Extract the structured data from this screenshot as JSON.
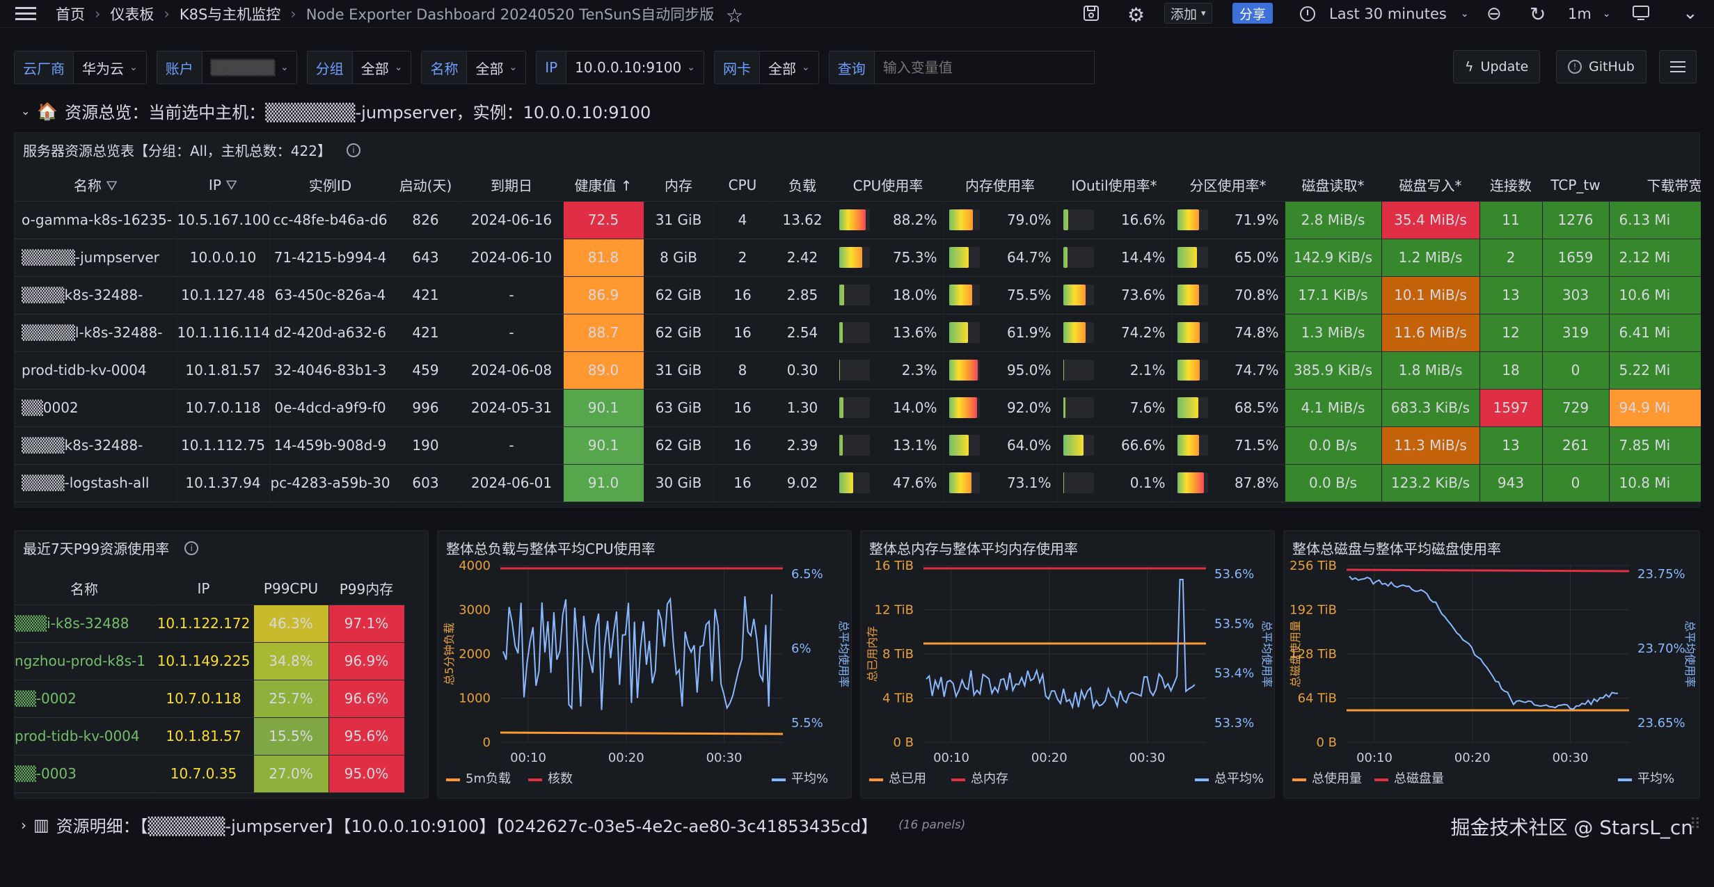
{
  "nav": {
    "breadcrumb": [
      "首页",
      "仪表板",
      "K8S与主机监控",
      "Node Exporter Dashboard 20240520 TenSunS自动同步版"
    ],
    "add_label": "添加",
    "share_label": "分享",
    "time_range": "Last 30 minutes",
    "refresh_interval": "1m"
  },
  "vars": [
    {
      "label": "云厂商",
      "value": "华为云"
    },
    {
      "label": "账户",
      "value": "▒▒▒▒▒▒"
    },
    {
      "label": "分组",
      "value": "全部"
    },
    {
      "label": "名称",
      "value": "全部"
    },
    {
      "label": "IP",
      "value": "10.0.0.10:9100"
    },
    {
      "label": "网卡",
      "value": "全部"
    }
  ],
  "query": {
    "label": "查询",
    "placeholder": "输入变量值"
  },
  "buttons": {
    "update": "Update",
    "github": "GitHub"
  },
  "row1": {
    "title": "资源总览：当前选中主机：▒▒▒▒▒▒▒-jumpserver，实例：10.0.0.10:9100"
  },
  "overview": {
    "title": "服务器资源总览表【分组：All，主机总数：422】",
    "headers": [
      "名称",
      "IP",
      "实例ID",
      "启动(天)",
      "到期日",
      "健康值",
      "内存",
      "CPU",
      "负载",
      "CPU使用率",
      "内存使用率",
      "IOutil使用率*",
      "分区使用率*",
      "磁盘读取*",
      "磁盘写入*",
      "连接数",
      "TCP_tw",
      "下载带宽"
    ],
    "rows": [
      {
        "name": "o-gamma-k8s-16235-",
        "ip": "10.5.167.100",
        "id": "cc-48fe-b46a-d6",
        "up": "826",
        "exp": "2024-06-16",
        "health": "72.5",
        "mem": "31 GiB",
        "cpu": "4",
        "load": "13.62",
        "cpu_p": "88.2%",
        "mem_p": "79.0%",
        "io_p": "16.6%",
        "part_p": "71.9%",
        "dr": "2.8 MiB/s",
        "dw": "35.4 MiB/s",
        "conn": "11",
        "tw": "1276",
        "bw": "6.13 Mi"
      },
      {
        "name": "▒▒▒▒▒-jumpserver",
        "ip": "10.0.0.10",
        "id": "71-4215-b994-4",
        "up": "643",
        "exp": "2024-06-10",
        "health": "81.8",
        "mem": "8 GiB",
        "cpu": "2",
        "load": "2.42",
        "cpu_p": "75.3%",
        "mem_p": "64.7%",
        "io_p": "14.4%",
        "part_p": "65.0%",
        "dr": "142.9 KiB/s",
        "dw": "1.2 MiB/s",
        "conn": "2",
        "tw": "1659",
        "bw": "2.12 Mi"
      },
      {
        "name": "▒▒▒▒k8s-32488-",
        "ip": "10.1.127.48",
        "id": "63-450c-826a-4",
        "up": "421",
        "exp": "-",
        "health": "86.9",
        "mem": "62 GiB",
        "cpu": "16",
        "load": "2.85",
        "cpu_p": "18.0%",
        "mem_p": "75.5%",
        "io_p": "73.6%",
        "part_p": "70.8%",
        "dr": "17.1 KiB/s",
        "dw": "10.1 MiB/s",
        "conn": "13",
        "tw": "303",
        "bw": "10.6 Mi"
      },
      {
        "name": "▒▒▒▒▒l-k8s-32488-",
        "ip": "10.1.116.114",
        "id": "d2-420d-a632-6",
        "up": "421",
        "exp": "-",
        "health": "88.7",
        "mem": "62 GiB",
        "cpu": "16",
        "load": "2.54",
        "cpu_p": "13.6%",
        "mem_p": "61.9%",
        "io_p": "74.2%",
        "part_p": "74.8%",
        "dr": "1.3 MiB/s",
        "dw": "11.6 MiB/s",
        "conn": "12",
        "tw": "319",
        "bw": "6.41 Mi"
      },
      {
        "name": "prod-tidb-kv-0004",
        "ip": "10.1.81.57",
        "id": "32-4046-83b1-3",
        "up": "459",
        "exp": "2024-06-08",
        "health": "89.0",
        "mem": "31 GiB",
        "cpu": "8",
        "load": "0.30",
        "cpu_p": "2.3%",
        "mem_p": "95.0%",
        "io_p": "2.1%",
        "part_p": "74.7%",
        "dr": "385.9 KiB/s",
        "dw": "1.8 MiB/s",
        "conn": "18",
        "tw": "0",
        "bw": "5.22 Mi"
      },
      {
        "name": "▒▒0002",
        "ip": "10.7.0.118",
        "id": "0e-4dcd-a9f9-f0",
        "up": "996",
        "exp": "2024-05-31",
        "health": "90.1",
        "mem": "63 GiB",
        "cpu": "16",
        "load": "1.30",
        "cpu_p": "14.0%",
        "mem_p": "92.0%",
        "io_p": "7.6%",
        "part_p": "68.5%",
        "dr": "4.1 MiB/s",
        "dw": "683.3 KiB/s",
        "conn": "1597",
        "tw": "729",
        "bw": "94.9 Mi"
      },
      {
        "name": "▒▒▒▒k8s-32488-",
        "ip": "10.1.112.75",
        "id": "14-459b-908d-9",
        "up": "190",
        "exp": "-",
        "health": "90.1",
        "mem": "62 GiB",
        "cpu": "16",
        "load": "2.39",
        "cpu_p": "13.1%",
        "mem_p": "64.0%",
        "io_p": "66.6%",
        "part_p": "71.5%",
        "dr": "0.0 B/s",
        "dw": "11.3 MiB/s",
        "conn": "13",
        "tw": "261",
        "bw": "7.85 Mi"
      },
      {
        "name": "▒▒▒▒-logstash-all",
        "ip": "10.1.37.94",
        "id": "pc-4283-a59b-30",
        "up": "603",
        "exp": "2024-06-01",
        "health": "91.0",
        "mem": "30 GiB",
        "cpu": "16",
        "load": "9.02",
        "cpu_p": "47.6%",
        "mem_p": "73.1%",
        "io_p": "0.1%",
        "part_p": "87.8%",
        "dr": "0.0 B/s",
        "dw": "123.2 KiB/s",
        "conn": "943",
        "tw": "0",
        "bw": "10.8 Mi"
      }
    ]
  },
  "p99": {
    "title": "最近7天P99资源使用率",
    "headers": [
      "名称",
      "IP",
      "P99CPU",
      "P99内存"
    ],
    "rows": [
      {
        "name": "▒▒▒i-k8s-32488",
        "ip": "10.1.122.172",
        "cpu": "46.3%",
        "mem": "97.1%"
      },
      {
        "name": "ngzhou-prod-k8s-1",
        "ip": "10.1.149.225",
        "cpu": "34.8%",
        "mem": "96.9%"
      },
      {
        "name": "▒▒-0002",
        "ip": "10.7.0.118",
        "cpu": "25.7%",
        "mem": "96.6%"
      },
      {
        "name": "prod-tidb-kv-0004",
        "ip": "10.1.81.57",
        "cpu": "15.5%",
        "mem": "95.6%"
      },
      {
        "name": "▒▒-0003",
        "ip": "10.7.0.35",
        "cpu": "27.0%",
        "mem": "95.0%"
      }
    ]
  },
  "charts": {
    "load": {
      "title": "整体总负载与整体平均CPU使用率",
      "y_left": [
        "4000",
        "3000",
        "2000",
        "1000",
        "0"
      ],
      "y_right": [
        "6.5%",
        "6%",
        "5.5%"
      ],
      "x": [
        "00:10",
        "00:20",
        "00:30"
      ],
      "ylabel_left": "总5分钟负载",
      "ylabel_right": "总平均使用率",
      "legend": [
        "5m负载",
        "核数",
        "平均%"
      ]
    },
    "mem": {
      "title": "整体总内存与整体平均内存使用率",
      "y_left": [
        "16 TiB",
        "12 TiB",
        "8 TiB",
        "4 TiB",
        "0 B"
      ],
      "y_right": [
        "53.6%",
        "53.5%",
        "53.4%",
        "53.3%"
      ],
      "x": [
        "00:10",
        "00:20",
        "00:30"
      ],
      "ylabel_left": "总已用内存",
      "ylabel_right": "总平均使用率",
      "legend": [
        "总已用",
        "总内存",
        "总平均%"
      ]
    },
    "disk": {
      "title": "整体总磁盘与整体平均磁盘使用率",
      "y_left": [
        "256 TiB",
        "192 TiB",
        "128 TiB",
        "64 TiB",
        "0 B"
      ],
      "y_right": [
        "23.75%",
        "23.70%",
        "23.65%"
      ],
      "x": [
        "00:10",
        "00:20",
        "00:30"
      ],
      "ylabel_left": "总磁盘使用量",
      "ylabel_right": "总平均使用率",
      "legend": [
        "总使用量",
        "总磁盘量",
        "平均%"
      ]
    }
  },
  "row2": {
    "title": "资源明细：【▒▒▒▒▒▒-jumpserver】【10.0.0.10:9100】【0242627c-03e5-4e2c-ae80-3c41853435cd】",
    "panels": "(16 panels)"
  },
  "watermark": "掘金技术社区 @ StarsL_cn",
  "colors": {
    "green": "#37872d",
    "orange": "#ff9830",
    "red": "#e02f44",
    "amber": "#c4620a",
    "blue": "#6e9fff",
    "line": "#8ab8ff",
    "yellow": "#fade2a"
  }
}
